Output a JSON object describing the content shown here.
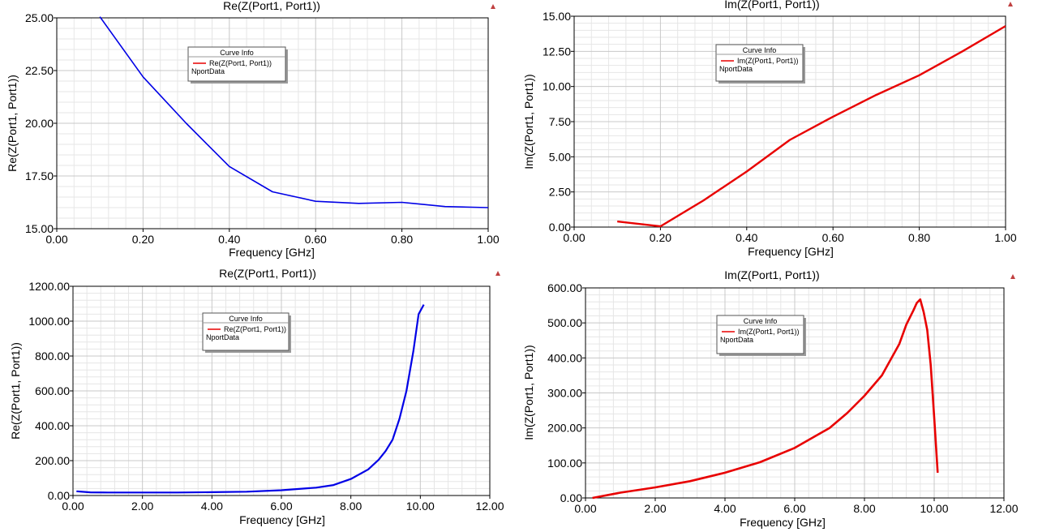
{
  "colors": {
    "blue": "#0000e6",
    "red": "#e80000",
    "grid": "#c8c8c8",
    "minor": "#e6e6e6",
    "marker": "#c04040"
  },
  "chart_data": [
    {
      "type": "line",
      "title": "Re(Z(Port1, Port1))",
      "xlabel": "Frequency [GHz]",
      "ylabel": "Re(Z(Port1, Port1))",
      "xlim": [
        0,
        1
      ],
      "ylim": [
        15,
        25
      ],
      "xticks": [
        "0.00",
        "0.20",
        "0.40",
        "0.60",
        "0.80",
        "1.00"
      ],
      "yticks": [
        "15.00",
        "17.50",
        "20.00",
        "22.50",
        "25.00"
      ],
      "legend_title": "Curve Info",
      "legend_entries": [
        "Re(Z(Port1, Port1))",
        "NportData"
      ],
      "color": "#0000e6",
      "series": [
        {
          "name": "Re(Z(Port1, Port1))",
          "x": [
            0.1,
            0.2,
            0.3,
            0.4,
            0.5,
            0.6,
            0.7,
            0.8,
            0.9,
            1.0
          ],
          "y": [
            25.05,
            22.2,
            20.0,
            17.95,
            16.75,
            16.3,
            16.2,
            16.25,
            16.05,
            16.0
          ]
        }
      ]
    },
    {
      "type": "line",
      "title": "Im(Z(Port1, Port1))",
      "xlabel": "Frequency [GHz]",
      "ylabel": "Im(Z(Port1, Port1))",
      "xlim": [
        0,
        1
      ],
      "ylim": [
        0,
        15
      ],
      "xticks": [
        "0.00",
        "0.20",
        "0.40",
        "0.60",
        "0.80",
        "1.00"
      ],
      "yticks": [
        "0.00",
        "2.50",
        "5.00",
        "7.50",
        "10.00",
        "12.50",
        "15.00"
      ],
      "legend_title": "Curve Info",
      "legend_entries": [
        "Im(Z(Port1, Port1))",
        "NportData"
      ],
      "color": "#e80000",
      "series": [
        {
          "name": "Im(Z(Port1, Port1))",
          "x": [
            0.1,
            0.2,
            0.3,
            0.4,
            0.5,
            0.6,
            0.7,
            0.8,
            0.9,
            1.0
          ],
          "y": [
            0.4,
            0.05,
            1.9,
            3.95,
            6.2,
            7.85,
            9.4,
            10.8,
            12.5,
            14.3
          ]
        }
      ]
    },
    {
      "type": "line",
      "title": "Re(Z(Port1, Port1))",
      "xlabel": "Frequency [GHz]",
      "ylabel": "Re(Z(Port1, Port1))",
      "xlim": [
        0,
        12
      ],
      "ylim": [
        0,
        1200
      ],
      "xticks": [
        "0.00",
        "2.00",
        "4.00",
        "6.00",
        "8.00",
        "10.00",
        "12.00"
      ],
      "yticks": [
        "0.00",
        "200.00",
        "400.00",
        "600.00",
        "800.00",
        "1000.00",
        "1200.00"
      ],
      "legend_title": "Curve Info",
      "legend_entries": [
        "Re(Z(Port1, Port1))",
        "NportData"
      ],
      "color": "#0000e6",
      "series": [
        {
          "name": "Re(Z(Port1, Port1))",
          "x": [
            0.1,
            0.5,
            1,
            2,
            3,
            4,
            5,
            6,
            7,
            7.5,
            8,
            8.5,
            8.8,
            9,
            9.2,
            9.4,
            9.6,
            9.8,
            9.95,
            10.1
          ],
          "y": [
            24,
            18,
            17,
            17,
            17,
            19,
            22,
            30,
            45,
            60,
            95,
            150,
            205,
            255,
            320,
            440,
            600,
            830,
            1040,
            1095
          ]
        }
      ]
    },
    {
      "type": "line",
      "title": "Im(Z(Port1, Port1))",
      "xlabel": "Frequency [GHz]",
      "ylabel": "Im(Z(Port1, Port1))",
      "xlim": [
        0,
        12
      ],
      "ylim": [
        0,
        600
      ],
      "xticks": [
        "0.00",
        "2.00",
        "4.00",
        "6.00",
        "8.00",
        "10.00",
        "12.00"
      ],
      "yticks": [
        "0.00",
        "100.00",
        "200.00",
        "300.00",
        "400.00",
        "500.00",
        "600.00"
      ],
      "legend_title": "Curve Info",
      "legend_entries": [
        "Im(Z(Port1, Port1))",
        "NportData"
      ],
      "color": "#e80000",
      "series": [
        {
          "name": "Im(Z(Port1, Port1))",
          "x": [
            0.2,
            1,
            2,
            3,
            4,
            5,
            6,
            7,
            7.5,
            8,
            8.5,
            9,
            9.2,
            9.4,
            9.5,
            9.6,
            9.7,
            9.8,
            9.9,
            10.0,
            10.1
          ],
          "y": [
            0,
            15,
            30,
            48,
            72,
            102,
            143,
            200,
            242,
            292,
            350,
            440,
            495,
            535,
            557,
            567,
            530,
            480,
            380,
            230,
            72
          ]
        }
      ]
    }
  ]
}
